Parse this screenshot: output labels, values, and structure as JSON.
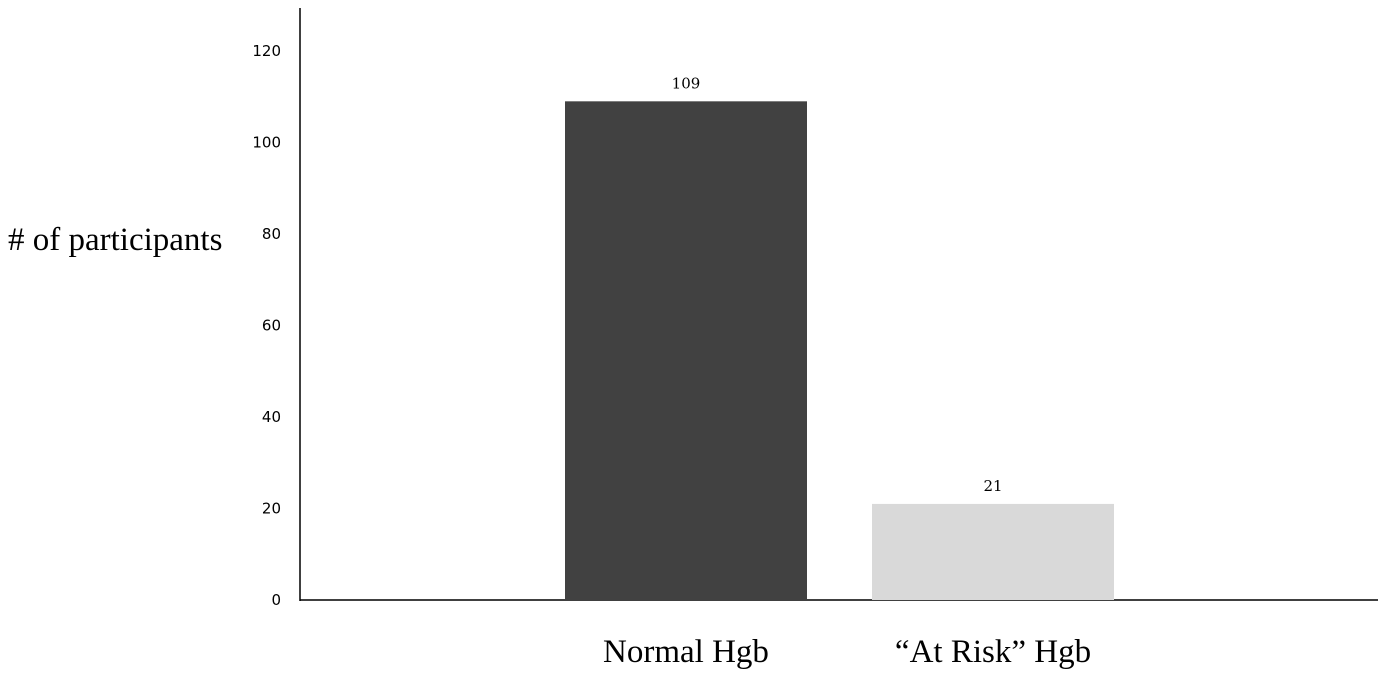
{
  "chart_data": {
    "type": "bar",
    "categories": [
      "Normal Hgb",
      "“At Risk” Hgb"
    ],
    "values": [
      109,
      21
    ],
    "data_labels": [
      "109",
      "21"
    ],
    "ylabel": "# of participants",
    "ylim": [
      0,
      130
    ],
    "yticks": [
      0,
      20,
      40,
      60,
      80,
      100,
      120
    ],
    "bar_colors": [
      "#414141",
      "#d9d9d9"
    ],
    "grid": false,
    "legend": "none"
  }
}
